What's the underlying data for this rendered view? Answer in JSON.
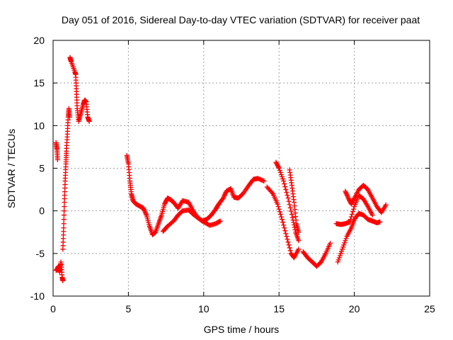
{
  "chart_data": {
    "type": "scatter",
    "title": "Day 051 of 2016, Sidereal Day-to-day VTEC variation (SDTVAR) for receiver paat",
    "xlabel": "GPS time / hours",
    "ylabel": "SDTVAR / TECUs",
    "xlim": [
      0,
      25
    ],
    "ylim": [
      -10,
      20
    ],
    "xticks": [
      0,
      5,
      10,
      15,
      20,
      25
    ],
    "yticks": [
      -10,
      -5,
      0,
      5,
      10,
      15,
      20
    ],
    "grid": true,
    "marker": "plus",
    "marker_color": "#ff0000",
    "series": [
      {
        "name": "arc-early-low",
        "x": [
          0.2,
          0.28,
          0.36,
          0.44,
          0.52,
          0.6,
          0.65
        ],
        "y": [
          -7.0,
          -6.8,
          -6.5,
          -7.2,
          -6.0,
          -7.8,
          -8.2
        ]
      },
      {
        "name": "arc-early-high",
        "x": [
          0.2,
          0.26,
          0.3
        ],
        "y": [
          8.0,
          7.2,
          6.0
        ]
      },
      {
        "name": "arc-rise",
        "x": [
          0.65,
          0.7,
          0.75,
          0.8,
          0.85,
          0.88,
          0.95,
          1.0,
          1.05,
          1.1
        ],
        "y": [
          -4.5,
          -2.0,
          1.0,
          3.5,
          5.5,
          7.0,
          9.0,
          11.0,
          12.0,
          11.0
        ]
      },
      {
        "name": "arc-early-spikes",
        "x": [
          1.12,
          1.2,
          1.45,
          1.5,
          1.55,
          1.6,
          1.7,
          1.85,
          2.0,
          2.1,
          2.2,
          2.3,
          2.4
        ],
        "y": [
          18.0,
          17.5,
          16.3,
          16.0,
          14.0,
          12.0,
          10.5,
          11.5,
          12.5,
          13.0,
          12.8,
          11.0,
          10.5
        ]
      },
      {
        "name": "arc-main",
        "x": [
          4.9,
          5.0,
          5.1,
          5.2,
          5.3,
          5.5,
          5.8,
          6.0,
          6.2,
          6.4,
          6.6,
          6.8,
          7.0,
          7.2,
          7.4,
          7.6,
          7.8,
          8.0,
          8.3,
          8.6,
          9.0,
          9.3,
          9.6,
          9.9,
          10.2,
          10.5,
          10.8,
          11.0,
          11.3,
          11.5,
          11.8,
          12.0,
          12.3,
          12.6,
          13.0,
          13.3,
          13.6,
          14.0
        ],
        "y": [
          6.5,
          5.5,
          3.5,
          2.0,
          1.2,
          0.8,
          0.5,
          0.3,
          -0.5,
          -1.8,
          -2.8,
          -2.5,
          -1.5,
          -0.5,
          0.8,
          1.5,
          1.3,
          1.0,
          0.3,
          1.2,
          1.0,
          0.0,
          -0.8,
          -1.2,
          -1.0,
          -0.5,
          0.2,
          0.8,
          1.5,
          2.3,
          2.6,
          1.6,
          1.5,
          2.0,
          3.0,
          3.7,
          3.8,
          3.5
        ]
      },
      {
        "name": "arc-lower-loop",
        "x": [
          7.3,
          7.6,
          8.0,
          8.3,
          8.6,
          9.0,
          9.3,
          9.6,
          10.0,
          10.4,
          10.8,
          11.1
        ],
        "y": [
          -2.4,
          -1.8,
          -1.2,
          -0.5,
          0.0,
          0.1,
          -0.4,
          -0.8,
          -1.3,
          -1.7,
          -1.5,
          -1.2
        ]
      },
      {
        "name": "arc-descent-1",
        "x": [
          14.2,
          14.6,
          14.9,
          15.2,
          15.5,
          15.8,
          16.0,
          16.3
        ],
        "y": [
          2.8,
          2.0,
          0.8,
          -1.0,
          -3.0,
          -5.0,
          -5.5,
          -4.5
        ]
      },
      {
        "name": "arc-descent-2",
        "x": [
          14.8,
          15.0,
          15.3,
          15.6,
          15.9,
          16.1,
          16.3
        ],
        "y": [
          5.7,
          5.0,
          3.5,
          1.5,
          -0.8,
          -2.5,
          -3.5
        ]
      },
      {
        "name": "arc-descent-3",
        "x": [
          15.7,
          15.85,
          16.0,
          16.15,
          16.3
        ],
        "y": [
          4.8,
          3.0,
          1.0,
          -1.5,
          -2.5
        ]
      },
      {
        "name": "arc-trough",
        "x": [
          16.6,
          16.9,
          17.2,
          17.5,
          17.8,
          18.1,
          18.4
        ],
        "y": [
          -4.8,
          -5.5,
          -6.0,
          -6.5,
          -6.0,
          -5.0,
          -3.8
        ]
      },
      {
        "name": "arc-late-lower",
        "x": [
          18.9,
          19.2,
          19.5,
          19.8,
          20.0,
          20.3,
          20.6,
          20.9,
          21.2,
          21.5,
          21.7
        ],
        "y": [
          -6.0,
          -4.5,
          -3.0,
          -2.0,
          -1.0,
          -0.3,
          -0.5,
          -1.0,
          -1.2,
          -1.4,
          -1.3
        ]
      },
      {
        "name": "arc-late-upper",
        "x": [
          19.4,
          19.6,
          19.8,
          20.0,
          20.3,
          20.6,
          20.9,
          21.2,
          21.5,
          21.8,
          22.1
        ],
        "y": [
          2.3,
          1.5,
          0.8,
          1.5,
          2.5,
          3.0,
          2.5,
          1.5,
          0.5,
          -0.2,
          0.7
        ]
      },
      {
        "name": "arc-late-middle",
        "x": [
          18.8,
          19.1,
          19.4,
          19.7,
          20.0,
          20.3,
          20.6,
          20.9,
          21.2
        ],
        "y": [
          -1.5,
          -1.6,
          -1.5,
          -1.3,
          0.5,
          1.8,
          1.4,
          0.5,
          -0.5
        ]
      }
    ]
  }
}
